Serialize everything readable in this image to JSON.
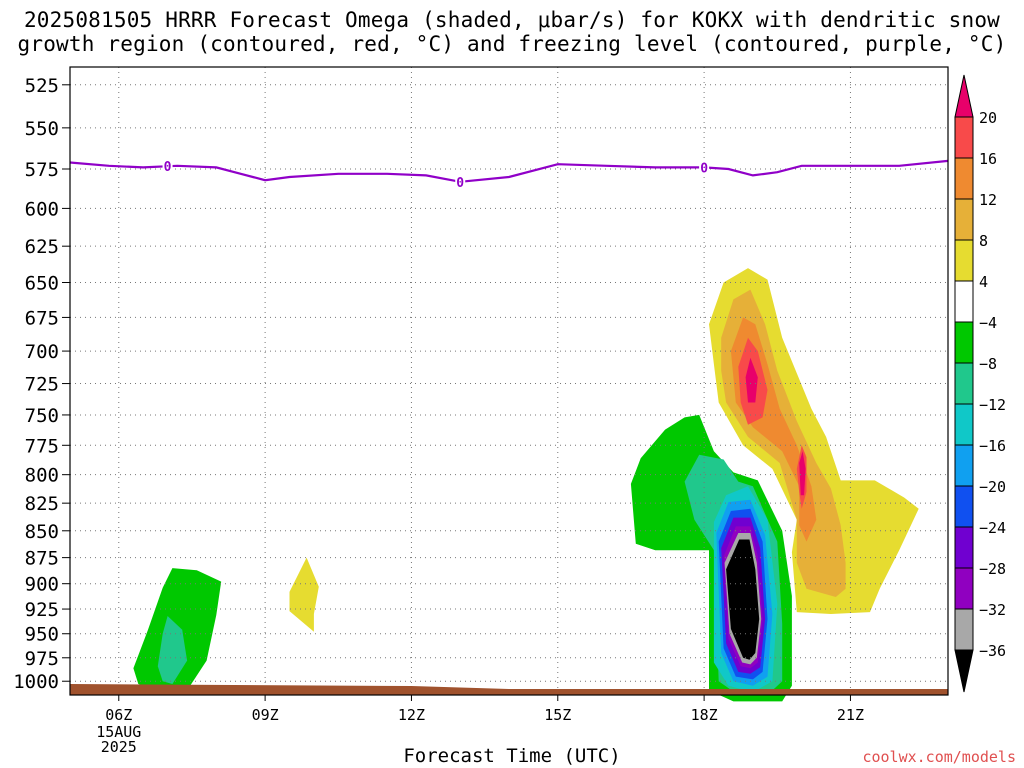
{
  "title_line1": "2025081505 HRRR Forecast Omega (shaded, μbar/s) for KOKX with dendritic snow",
  "title_line2": "growth region (contoured, red, °C) and freezing level (contoured, purple, °C)",
  "xlabel": "Forecast Time (UTC)",
  "credit": "coolwx.com/models",
  "date_label": [
    "15AUG",
    "2025"
  ],
  "chart_data": {
    "type": "heatmap",
    "x_ticks": [
      "06Z",
      "09Z",
      "12Z",
      "15Z",
      "18Z",
      "21Z"
    ],
    "x_hours": [
      6,
      9,
      12,
      15,
      18,
      21
    ],
    "xlim_hours": [
      5,
      23
    ],
    "y_ticks": [
      525,
      550,
      575,
      600,
      625,
      650,
      675,
      700,
      725,
      750,
      775,
      800,
      825,
      850,
      875,
      900,
      925,
      950,
      975,
      1000
    ],
    "ylim_hpa": [
      1015,
      515
    ],
    "y_scale": "log-pressure",
    "grid": true,
    "colorbar": {
      "labels": [
        "20",
        "16",
        "12",
        "8",
        "4",
        "−4",
        "−8",
        "−12",
        "−16",
        "−20",
        "−24",
        "−28",
        "−32",
        "−36"
      ],
      "colors": [
        "#e8006a",
        "#f84a4a",
        "#ef8a30",
        "#e6b038",
        "#e6dc30",
        "#ffffff",
        "#00c800",
        "#20c88c",
        "#10c8c8",
        "#10a0f0",
        "#1050f0",
        "#7000d0",
        "#9000c0",
        "#a8a8a8",
        "#000000"
      ]
    },
    "freezing_level": {
      "color": "#9000c8",
      "label": "0",
      "points": [
        [
          5.0,
          571
        ],
        [
          5.8,
          573
        ],
        [
          6.5,
          574
        ],
        [
          7.2,
          573
        ],
        [
          8.0,
          574
        ],
        [
          8.5,
          578
        ],
        [
          9.0,
          582
        ],
        [
          9.5,
          580
        ],
        [
          10.5,
          578
        ],
        [
          11.5,
          578
        ],
        [
          12.3,
          579
        ],
        [
          13.0,
          583
        ],
        [
          14.0,
          580
        ],
        [
          15.0,
          572
        ],
        [
          16.0,
          573
        ],
        [
          17.0,
          574
        ],
        [
          18.0,
          574
        ],
        [
          18.5,
          575
        ],
        [
          19.0,
          579
        ],
        [
          19.5,
          577
        ],
        [
          20.0,
          573
        ],
        [
          21.0,
          573
        ],
        [
          22.0,
          573
        ],
        [
          23.0,
          570
        ]
      ],
      "label_hours": [
        7.0,
        13.0,
        18.0
      ]
    },
    "regions": [
      {
        "color": "#00c800",
        "points": [
          [
            6.3,
            986
          ],
          [
            6.6,
            946
          ],
          [
            6.9,
            904
          ],
          [
            7.1,
            885
          ],
          [
            7.6,
            887
          ],
          [
            8.1,
            898
          ],
          [
            8.0,
            931
          ],
          [
            7.8,
            978
          ],
          [
            7.4,
            1010
          ],
          [
            6.8,
            1010
          ],
          [
            6.4,
            1003
          ]
        ]
      },
      {
        "color": "#20c88c",
        "points": [
          [
            6.8,
            984
          ],
          [
            6.9,
            950
          ],
          [
            7.0,
            932
          ],
          [
            7.3,
            946
          ],
          [
            7.4,
            978
          ],
          [
            7.1,
            1003
          ],
          [
            6.9,
            1000
          ]
        ]
      },
      {
        "color": "#e6dc30",
        "points": [
          [
            9.5,
            908
          ],
          [
            9.85,
            875
          ],
          [
            10.1,
            903
          ],
          [
            10.0,
            930
          ],
          [
            10.0,
            948
          ],
          [
            9.5,
            927
          ]
        ]
      },
      {
        "color": "#00c800",
        "points": [
          [
            16.5,
            808
          ],
          [
            16.7,
            786
          ],
          [
            17.2,
            762
          ],
          [
            17.6,
            752
          ],
          [
            17.9,
            750
          ],
          [
            18.2,
            780
          ],
          [
            18.6,
            798
          ],
          [
            19.1,
            805
          ],
          [
            19.6,
            850
          ],
          [
            19.8,
            912
          ],
          [
            19.8,
            1005
          ],
          [
            19.6,
            1022
          ],
          [
            18.6,
            1022
          ],
          [
            18.1,
            1010
          ],
          [
            18.1,
            868
          ],
          [
            17.8,
            868
          ],
          [
            17.0,
            868
          ],
          [
            16.6,
            862
          ]
        ]
      },
      {
        "color": "#20c88c",
        "points": [
          [
            17.6,
            806
          ],
          [
            17.9,
            783
          ],
          [
            18.4,
            787
          ],
          [
            18.7,
            806
          ],
          [
            19.0,
            810
          ],
          [
            19.5,
            860
          ],
          [
            19.6,
            940
          ],
          [
            19.6,
            1000
          ],
          [
            19.3,
            1015
          ],
          [
            18.7,
            1015
          ],
          [
            18.3,
            1000
          ],
          [
            18.2,
            868
          ],
          [
            17.8,
            840
          ]
        ]
      },
      {
        "color": "#10c8c8",
        "points": [
          [
            18.2,
            842
          ],
          [
            18.45,
            818
          ],
          [
            18.9,
            810
          ],
          [
            19.3,
            840
          ],
          [
            19.5,
            920
          ],
          [
            19.4,
            1000
          ],
          [
            19.0,
            1012
          ],
          [
            18.5,
            1005
          ],
          [
            18.2,
            980
          ]
        ]
      },
      {
        "color": "#10a0f0",
        "points": [
          [
            18.25,
            852
          ],
          [
            18.5,
            824
          ],
          [
            18.95,
            822
          ],
          [
            19.25,
            854
          ],
          [
            19.4,
            930
          ],
          [
            19.3,
            995
          ],
          [
            19.0,
            1005
          ],
          [
            18.6,
            1000
          ],
          [
            18.35,
            970
          ]
        ]
      },
      {
        "color": "#1050f0",
        "points": [
          [
            18.3,
            860
          ],
          [
            18.55,
            832
          ],
          [
            18.95,
            830
          ],
          [
            19.2,
            860
          ],
          [
            19.3,
            935
          ],
          [
            19.2,
            990
          ],
          [
            19.0,
            998
          ],
          [
            18.65,
            995
          ],
          [
            18.4,
            965
          ]
        ]
      },
      {
        "color": "#7000d0",
        "points": [
          [
            18.35,
            866
          ],
          [
            18.6,
            838
          ],
          [
            18.95,
            838
          ],
          [
            19.15,
            866
          ],
          [
            19.25,
            935
          ],
          [
            19.15,
            985
          ],
          [
            18.95,
            992
          ],
          [
            18.7,
            990
          ],
          [
            18.45,
            960
          ]
        ]
      },
      {
        "color": "#9000c0",
        "points": [
          [
            18.4,
            874
          ],
          [
            18.65,
            846
          ],
          [
            18.95,
            846
          ],
          [
            19.1,
            874
          ],
          [
            19.2,
            935
          ],
          [
            19.1,
            980
          ],
          [
            18.95,
            986
          ],
          [
            18.75,
            984
          ],
          [
            18.5,
            955
          ]
        ]
      },
      {
        "color": "#a8a8a8",
        "points": [
          [
            18.42,
            880
          ],
          [
            18.7,
            852
          ],
          [
            18.95,
            852
          ],
          [
            19.08,
            880
          ],
          [
            19.17,
            935
          ],
          [
            19.08,
            975
          ],
          [
            18.95,
            982
          ],
          [
            18.78,
            980
          ],
          [
            18.52,
            950
          ]
        ]
      },
      {
        "color": "#000000",
        "points": [
          [
            18.45,
            886
          ],
          [
            18.72,
            858
          ],
          [
            18.93,
            858
          ],
          [
            19.05,
            886
          ],
          [
            19.13,
            935
          ],
          [
            19.05,
            970
          ],
          [
            18.93,
            977
          ],
          [
            18.8,
            975
          ],
          [
            18.55,
            945
          ]
        ]
      },
      {
        "color": "#e6dc30",
        "points": [
          [
            18.1,
            680
          ],
          [
            18.4,
            650
          ],
          [
            18.9,
            640
          ],
          [
            19.3,
            648
          ],
          [
            19.6,
            690
          ],
          [
            20.2,
            745
          ],
          [
            20.5,
            768
          ],
          [
            20.8,
            805
          ],
          [
            21.5,
            805
          ],
          [
            22.1,
            820
          ],
          [
            22.4,
            830
          ],
          [
            22.0,
            868
          ],
          [
            21.6,
            905
          ],
          [
            21.4,
            928
          ],
          [
            20.6,
            930
          ],
          [
            19.9,
            928
          ],
          [
            19.8,
            870
          ],
          [
            19.9,
            840
          ],
          [
            19.4,
            795
          ],
          [
            18.8,
            775
          ],
          [
            18.3,
            740
          ],
          [
            18.2,
            710
          ]
        ]
      },
      {
        "color": "#e6b038",
        "points": [
          [
            18.35,
            690
          ],
          [
            18.6,
            662
          ],
          [
            18.95,
            655
          ],
          [
            19.25,
            680
          ],
          [
            19.5,
            715
          ],
          [
            19.9,
            755
          ],
          [
            20.3,
            790
          ],
          [
            20.6,
            812
          ],
          [
            20.8,
            845
          ],
          [
            20.9,
            880
          ],
          [
            20.9,
            905
          ],
          [
            20.7,
            913
          ],
          [
            20.1,
            905
          ],
          [
            19.9,
            880
          ],
          [
            19.9,
            840
          ],
          [
            19.55,
            790
          ],
          [
            18.9,
            768
          ],
          [
            18.45,
            740
          ],
          [
            18.35,
            715
          ]
        ]
      },
      {
        "color": "#ef8a30",
        "points": [
          [
            18.55,
            700
          ],
          [
            18.8,
            675
          ],
          [
            19.05,
            680
          ],
          [
            19.3,
            710
          ],
          [
            19.55,
            745
          ],
          [
            19.9,
            775
          ],
          [
            20.2,
            810
          ],
          [
            20.3,
            840
          ],
          [
            20.1,
            860
          ],
          [
            19.95,
            845
          ],
          [
            19.95,
            810
          ],
          [
            19.6,
            780
          ],
          [
            19.0,
            760
          ],
          [
            18.65,
            740
          ]
        ]
      },
      {
        "color": "#f84a4a",
        "points": [
          [
            18.7,
            712
          ],
          [
            18.9,
            690
          ],
          [
            19.1,
            700
          ],
          [
            19.3,
            730
          ],
          [
            19.2,
            752
          ],
          [
            18.9,
            758
          ],
          [
            18.75,
            740
          ]
        ]
      },
      {
        "color": "#f84a4a",
        "points": [
          [
            19.9,
            795
          ],
          [
            20.0,
            775
          ],
          [
            20.1,
            785
          ],
          [
            20.1,
            815
          ],
          [
            20.0,
            830
          ],
          [
            19.95,
            815
          ]
        ]
      },
      {
        "color": "#e8006a",
        "points": [
          [
            18.85,
            720
          ],
          [
            18.95,
            705
          ],
          [
            19.1,
            720
          ],
          [
            19.05,
            740
          ],
          [
            18.9,
            740
          ]
        ]
      },
      {
        "color": "#e8006a",
        "points": [
          [
            19.95,
            790
          ],
          [
            20.02,
            780
          ],
          [
            20.08,
            795
          ],
          [
            20.05,
            818
          ],
          [
            19.98,
            818
          ]
        ]
      }
    ],
    "terrain": {
      "color": "#a0522d"
    }
  }
}
